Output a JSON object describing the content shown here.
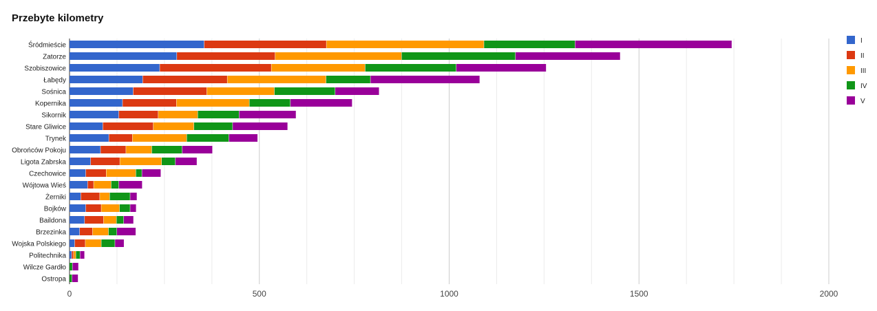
{
  "chart_data": {
    "type": "bar",
    "orientation": "horizontal",
    "stacked": true,
    "title": "Przebyte kilometry",
    "xlabel": "",
    "ylabel": "",
    "xlim": [
      0,
      2000
    ],
    "x_ticks": [
      0,
      500,
      1000,
      1500,
      2000
    ],
    "grid": true,
    "legend_position": "right",
    "categories": [
      "Śródmieście",
      "Zatorze",
      "Szobiszowice",
      "Łabędy",
      "Sośnica",
      "Kopernika",
      "Sikornik",
      "Stare Gliwice",
      "Trynek",
      "Obrońców Pokoju",
      "Ligota Zabrska",
      "Czechowice",
      "Wójtowa Wieś",
      "Żerniki",
      "Bojków",
      "Baildona",
      "Brzezinka",
      "Wojska Polskiego",
      "Politechnika",
      "Wilcze Gardło",
      "Ostropa"
    ],
    "series": [
      {
        "name": "I",
        "color": "#3366cc",
        "values": [
          355,
          283,
          238,
          193,
          168,
          140,
          130,
          88,
          104,
          82,
          56,
          43,
          48,
          30,
          43,
          40,
          27,
          14,
          6,
          0,
          0
        ]
      },
      {
        "name": "II",
        "color": "#dc3912",
        "values": [
          322,
          259,
          294,
          223,
          194,
          142,
          104,
          133,
          62,
          67,
          77,
          54,
          16,
          50,
          41,
          50,
          34,
          28,
          5,
          0,
          0
        ]
      },
      {
        "name": "III",
        "color": "#ff9900",
        "values": [
          415,
          333,
          247,
          260,
          178,
          192,
          104,
          107,
          143,
          68,
          110,
          78,
          46,
          26,
          48,
          34,
          42,
          42,
          6,
          0,
          0
        ]
      },
      {
        "name": "IV",
        "color": "#109618",
        "values": [
          240,
          300,
          240,
          117,
          160,
          108,
          109,
          102,
          111,
          80,
          36,
          16,
          20,
          54,
          28,
          19,
          22,
          36,
          11,
          8,
          7
        ]
      },
      {
        "name": "V",
        "color": "#990099",
        "values": [
          413,
          276,
          237,
          288,
          116,
          163,
          150,
          145,
          76,
          80,
          57,
          50,
          62,
          18,
          16,
          26,
          50,
          24,
          12,
          16,
          16
        ]
      }
    ]
  }
}
